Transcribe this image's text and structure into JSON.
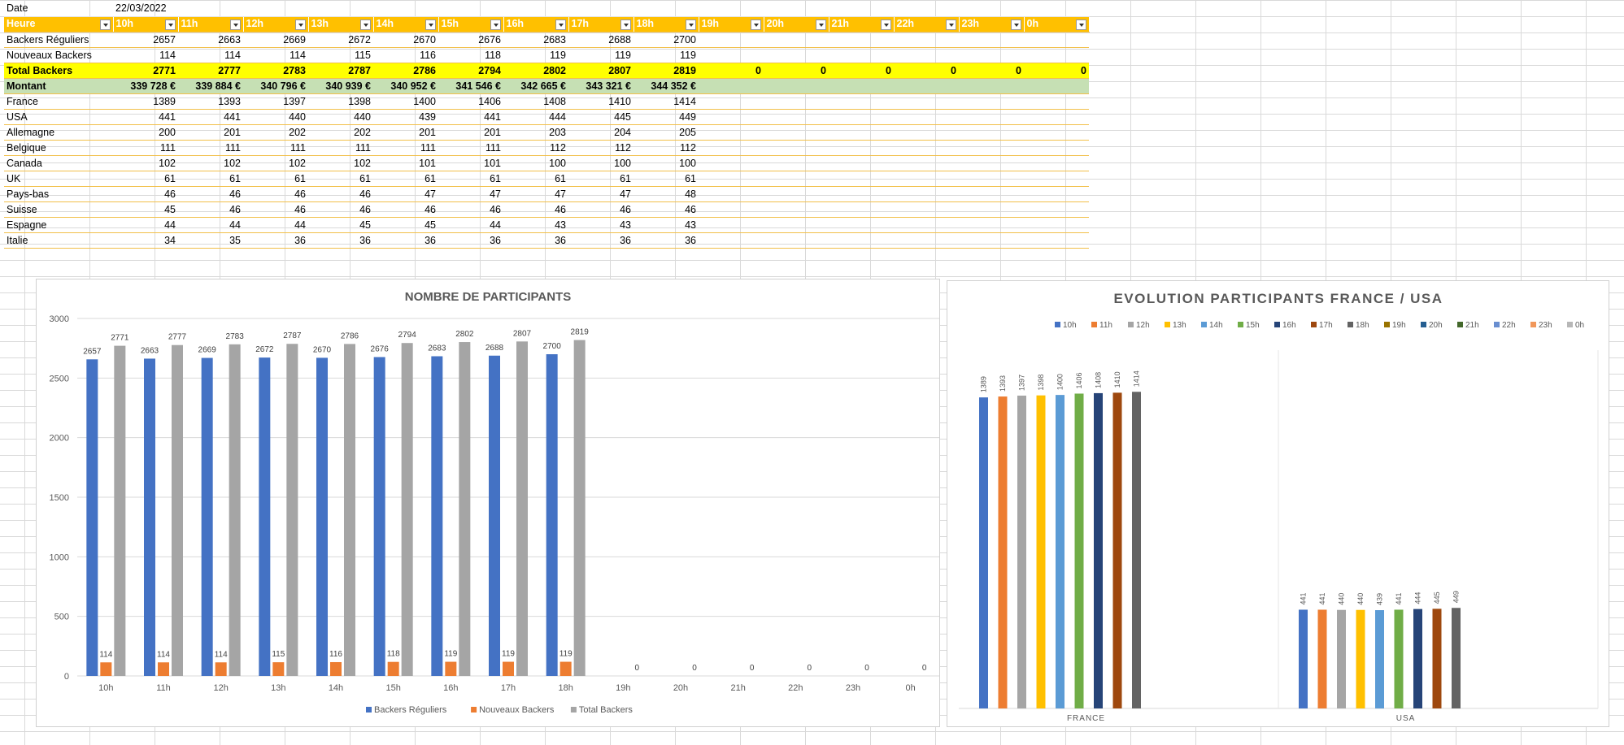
{
  "sheet": {
    "date_label": "Date",
    "date_value": "22/03/2022",
    "header_label": "Heure",
    "hours": [
      "10h",
      "11h",
      "12h",
      "13h",
      "14h",
      "15h",
      "16h",
      "17h",
      "18h",
      "19h",
      "20h",
      "21h",
      "22h",
      "23h",
      "0h"
    ],
    "rows": [
      {
        "label": "Backers Réguliers",
        "values": [
          "2657",
          "2663",
          "2669",
          "2672",
          "2670",
          "2676",
          "2683",
          "2688",
          "2700",
          "",
          "",
          "",
          "",
          "",
          ""
        ],
        "style": "normal"
      },
      {
        "label": "Nouveaux Backers",
        "values": [
          "114",
          "114",
          "114",
          "115",
          "116",
          "118",
          "119",
          "119",
          "119",
          "",
          "",
          "",
          "",
          "",
          ""
        ],
        "style": "normal"
      },
      {
        "label": "Total Backers",
        "values": [
          "2771",
          "2777",
          "2783",
          "2787",
          "2786",
          "2794",
          "2802",
          "2807",
          "2819",
          "0",
          "0",
          "0",
          "0",
          "0",
          "0"
        ],
        "style": "total"
      },
      {
        "label": "Montant",
        "values": [
          "339 728 €",
          "339 884 €",
          "340 796 €",
          "340 939 €",
          "340 952 €",
          "341 546 €",
          "342 665 €",
          "343 321 €",
          "344 352 €",
          "",
          "",
          "",
          "",
          "",
          ""
        ],
        "style": "montant"
      },
      {
        "label": "France",
        "values": [
          "1389",
          "1393",
          "1397",
          "1398",
          "1400",
          "1406",
          "1408",
          "1410",
          "1414",
          "",
          "",
          "",
          "",
          "",
          ""
        ],
        "style": "normal"
      },
      {
        "label": "USA",
        "values": [
          "441",
          "441",
          "440",
          "440",
          "439",
          "441",
          "444",
          "445",
          "449",
          "",
          "",
          "",
          "",
          "",
          ""
        ],
        "style": "normal"
      },
      {
        "label": "Allemagne",
        "values": [
          "200",
          "201",
          "202",
          "202",
          "201",
          "201",
          "203",
          "204",
          "205",
          "",
          "",
          "",
          "",
          "",
          ""
        ],
        "style": "normal"
      },
      {
        "label": "Belgique",
        "values": [
          "111",
          "111",
          "111",
          "111",
          "111",
          "111",
          "112",
          "112",
          "112",
          "",
          "",
          "",
          "",
          "",
          ""
        ],
        "style": "normal"
      },
      {
        "label": "Canada",
        "values": [
          "102",
          "102",
          "102",
          "102",
          "101",
          "101",
          "100",
          "100",
          "100",
          "",
          "",
          "",
          "",
          "",
          ""
        ],
        "style": "normal"
      },
      {
        "label": "UK",
        "values": [
          "61",
          "61",
          "61",
          "61",
          "61",
          "61",
          "61",
          "61",
          "61",
          "",
          "",
          "",
          "",
          "",
          ""
        ],
        "style": "normal"
      },
      {
        "label": "Pays-bas",
        "values": [
          "46",
          "46",
          "46",
          "46",
          "47",
          "47",
          "47",
          "47",
          "48",
          "",
          "",
          "",
          "",
          "",
          ""
        ],
        "style": "normal"
      },
      {
        "label": "Suisse",
        "values": [
          "45",
          "46",
          "46",
          "46",
          "46",
          "46",
          "46",
          "46",
          "46",
          "",
          "",
          "",
          "",
          "",
          ""
        ],
        "style": "normal"
      },
      {
        "label": "Espagne",
        "values": [
          "44",
          "44",
          "44",
          "45",
          "45",
          "44",
          "43",
          "43",
          "43",
          "",
          "",
          "",
          "",
          "",
          ""
        ],
        "style": "normal"
      },
      {
        "label": "Italie",
        "values": [
          "34",
          "35",
          "36",
          "36",
          "36",
          "36",
          "36",
          "36",
          "36",
          "",
          "",
          "",
          "",
          "",
          ""
        ],
        "style": "normal"
      }
    ]
  },
  "chart_data": [
    {
      "type": "bar",
      "title": "NOMBRE DE PARTICIPANTS",
      "categories": [
        "10h",
        "11h",
        "12h",
        "13h",
        "14h",
        "15h",
        "16h",
        "17h",
        "18h",
        "19h",
        "20h",
        "21h",
        "22h",
        "23h",
        "0h"
      ],
      "ylim": [
        0,
        3000
      ],
      "yticks": [
        0,
        500,
        1000,
        1500,
        2000,
        2500,
        3000
      ],
      "legend": "bottom",
      "grid": true,
      "series": [
        {
          "name": "Backers Réguliers",
          "color": "#4472c4",
          "values": [
            2657,
            2663,
            2669,
            2672,
            2670,
            2676,
            2683,
            2688,
            2700,
            null,
            null,
            null,
            null,
            null,
            null
          ]
        },
        {
          "name": "Nouveaux Backers",
          "color": "#ed7d31",
          "values": [
            114,
            114,
            114,
            115,
            116,
            118,
            119,
            119,
            119,
            null,
            null,
            null,
            null,
            null,
            null
          ]
        },
        {
          "name": "Total Backers",
          "color": "#a5a5a5",
          "values": [
            2771,
            2777,
            2783,
            2787,
            2786,
            2794,
            2802,
            2807,
            2819,
            0,
            0,
            0,
            0,
            0,
            0
          ]
        }
      ]
    },
    {
      "type": "bar",
      "title": "EVOLUTION PARTICIPANTS FRANCE / USA",
      "categories": [
        "FRANCE",
        "USA"
      ],
      "legend": "top",
      "grid": false,
      "ylim": [
        0,
        1600
      ],
      "series": [
        {
          "name": "10h",
          "color": "#4472c4",
          "values": [
            1389,
            441
          ]
        },
        {
          "name": "11h",
          "color": "#ed7d31",
          "values": [
            1393,
            441
          ]
        },
        {
          "name": "12h",
          "color": "#a5a5a5",
          "values": [
            1397,
            440
          ]
        },
        {
          "name": "13h",
          "color": "#ffc000",
          "values": [
            1398,
            440
          ]
        },
        {
          "name": "14h",
          "color": "#5b9bd5",
          "values": [
            1400,
            439
          ]
        },
        {
          "name": "15h",
          "color": "#70ad47",
          "values": [
            1406,
            441
          ]
        },
        {
          "name": "16h",
          "color": "#264478",
          "values": [
            1408,
            444
          ]
        },
        {
          "name": "17h",
          "color": "#9e480e",
          "values": [
            1410,
            445
          ]
        },
        {
          "name": "18h",
          "color": "#636363",
          "values": [
            1414,
            449
          ]
        },
        {
          "name": "19h",
          "color": "#997300",
          "values": [
            null,
            null
          ]
        },
        {
          "name": "20h",
          "color": "#255e91",
          "values": [
            null,
            null
          ]
        },
        {
          "name": "21h",
          "color": "#43682b",
          "values": [
            null,
            null
          ]
        },
        {
          "name": "22h",
          "color": "#698ed0",
          "values": [
            null,
            null
          ]
        },
        {
          "name": "23h",
          "color": "#f1975a",
          "values": [
            null,
            null
          ]
        },
        {
          "name": "0h",
          "color": "#b7b7b7",
          "values": [
            null,
            null
          ]
        }
      ]
    }
  ]
}
